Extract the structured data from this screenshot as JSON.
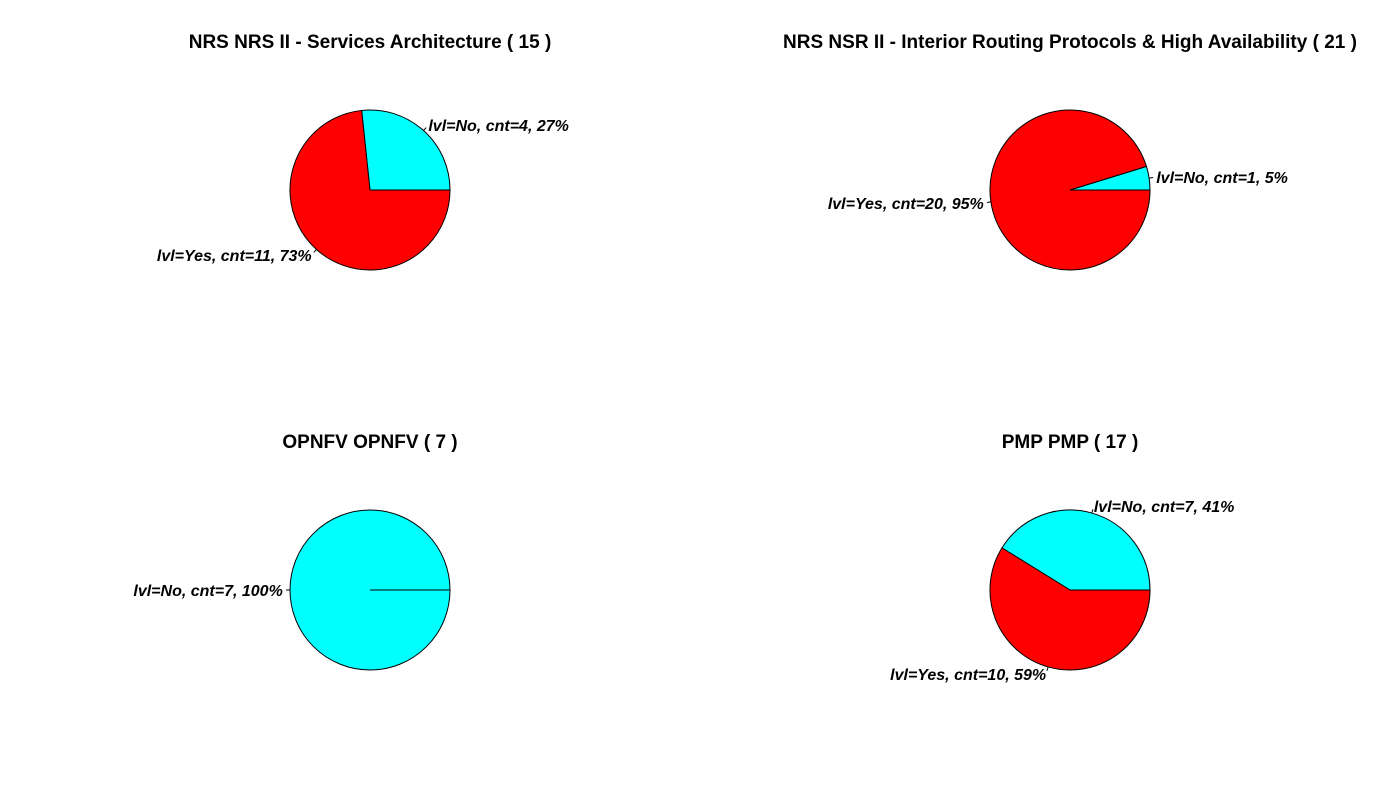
{
  "chart_data": [
    {
      "type": "pie",
      "title": "NRS NRS II - Services Architecture ( 15 )",
      "slices": [
        {
          "label": "lvl=No, cnt=4, 27%",
          "value": 4,
          "color": "#00ffff"
        },
        {
          "label": "lvl=Yes, cnt=11, 73%",
          "value": 11,
          "color": "#ff0000"
        }
      ]
    },
    {
      "type": "pie",
      "title": "NRS NSR II - Interior Routing Protocols & High Availability ( 21 )",
      "slices": [
        {
          "label": "lvl=No, cnt=1, 5%",
          "value": 1,
          "color": "#00ffff"
        },
        {
          "label": "lvl=Yes, cnt=20, 95%",
          "value": 20,
          "color": "#ff0000"
        }
      ]
    },
    {
      "type": "pie",
      "title": "OPNFV OPNFV ( 7 )",
      "slices": [
        {
          "label": "lvl=No, cnt=7, 100%",
          "value": 7,
          "color": "#00ffff"
        }
      ]
    },
    {
      "type": "pie",
      "title": "PMP PMP ( 17 )",
      "slices": [
        {
          "label": "lvl=No, cnt=7, 41%",
          "value": 7,
          "color": "#00ffff"
        },
        {
          "label": "lvl=Yes, cnt=10, 59%",
          "value": 10,
          "color": "#ff0000"
        }
      ]
    }
  ]
}
